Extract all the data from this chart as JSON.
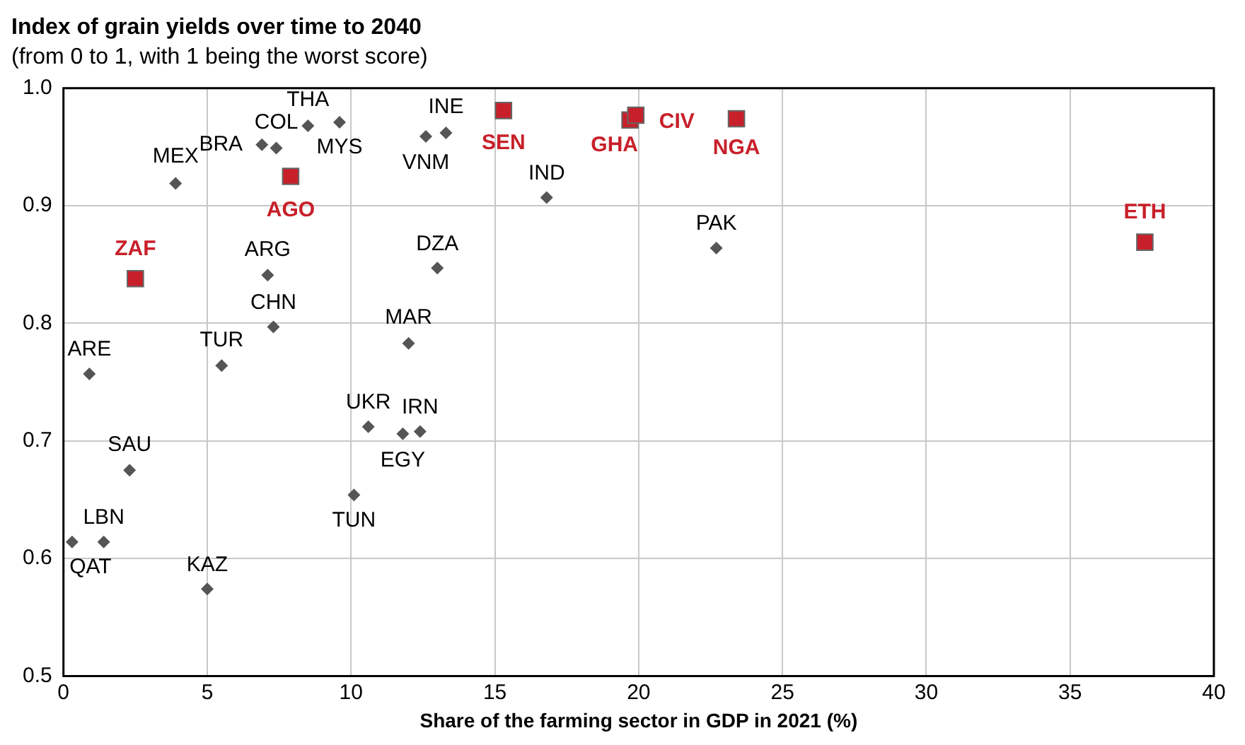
{
  "chart_data": {
    "type": "scatter",
    "title": "Index of grain yields over time to 2040",
    "subtitle": "(from 0 to 1, with 1 being the worst score)",
    "xlabel": "Share of the farming sector in GDP in 2021 (%)",
    "xlim": [
      0,
      40
    ],
    "xticks": [
      0,
      5,
      10,
      15,
      20,
      25,
      30,
      35,
      40
    ],
    "ylim": [
      0.5,
      1.0
    ],
    "yticks": [
      {
        "value": 0.5,
        "label": "0.5"
      },
      {
        "value": 0.6,
        "label": "0.6"
      },
      {
        "value": 0.7,
        "label": "0.7"
      },
      {
        "value": 0.8,
        "label": "0.8"
      },
      {
        "value": 0.9,
        "label": "0.9"
      },
      {
        "value": 1.0,
        "label": "1.0"
      }
    ],
    "grid": true,
    "legend": false,
    "series": [
      {
        "color": "#555555",
        "marker": "diamond",
        "x": [
          3.9,
          6.9,
          7.4,
          8.5,
          9.6,
          7.1,
          7.3,
          12.6,
          13.3,
          13.0,
          12.0,
          16.8,
          22.7,
          0.9,
          5.5,
          10.6,
          11.8,
          12.4,
          2.3,
          10.1,
          0.3,
          1.4,
          5.0
        ],
        "values": [
          0.919,
          0.952,
          0.949,
          0.968,
          0.971,
          0.841,
          0.797,
          0.959,
          0.962,
          0.847,
          0.783,
          0.907,
          0.864,
          0.757,
          0.764,
          0.712,
          0.706,
          0.708,
          0.675,
          0.654,
          0.614,
          0.614,
          0.574
        ],
        "value_labels": [
          "MEX",
          "BRA",
          "COL",
          "THA",
          "MYS",
          "ARG",
          "CHN",
          "VNM",
          "INE",
          "DZA",
          "MAR",
          "IND",
          "PAK",
          "ARE",
          "TUR",
          "UKR",
          "EGY",
          "IRN",
          "SAU",
          "TUN",
          "QAT",
          "LBN",
          "KAZ"
        ]
      },
      {
        "color": "#c8202a",
        "marker": "square",
        "x": [
          2.5,
          7.9,
          15.3,
          19.7,
          19.9,
          23.4,
          37.6
        ],
        "values": [
          0.838,
          0.925,
          0.981,
          0.973,
          0.977,
          0.974,
          0.869
        ],
        "value_labels": [
          "ZAF",
          "AGO",
          "SEN",
          "GHA",
          "CIV",
          "NGA",
          "ETH"
        ]
      }
    ]
  }
}
